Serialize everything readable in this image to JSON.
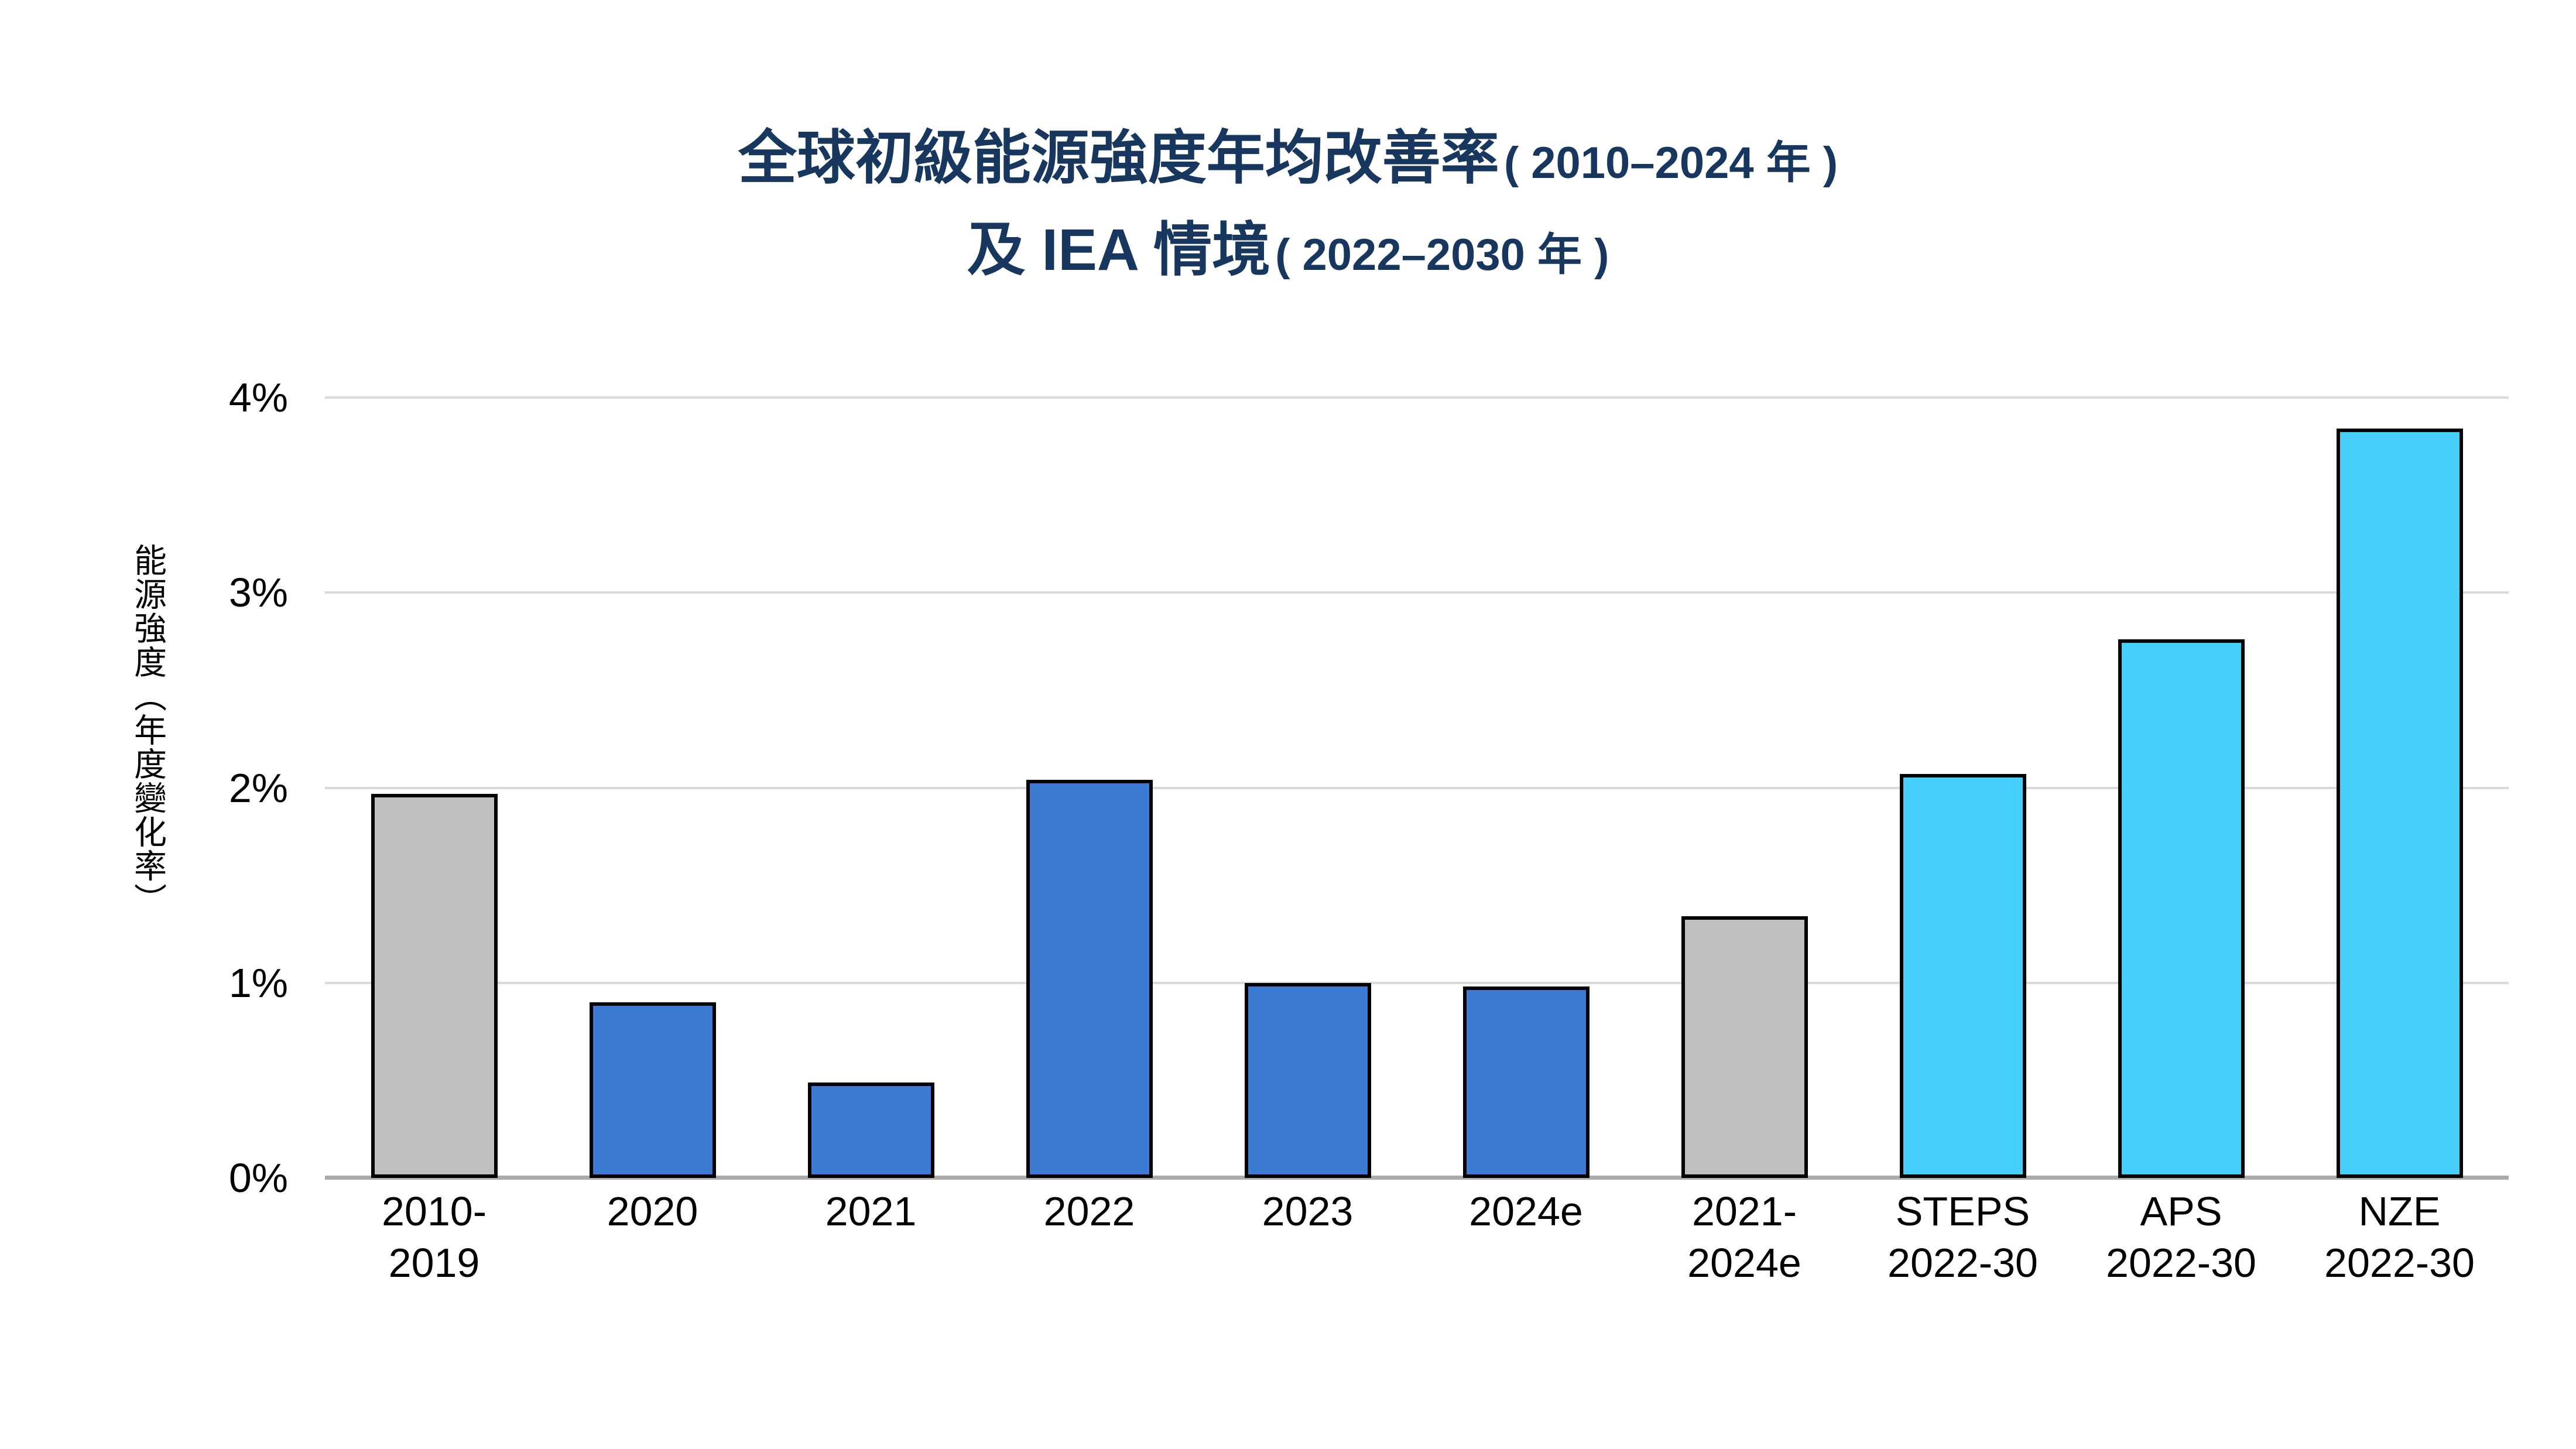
{
  "title": {
    "line1_main": "全球初級能源強度年均改善率",
    "line1_paren": "( 2010–2024 年 )",
    "line2_main": "及 IEA 情境",
    "line2_paren": "( 2022–2030 年 )",
    "color": "#17375E"
  },
  "chart_data": {
    "type": "bar",
    "title": "全球初級能源強度年均改善率 ( 2010–2024 年 ) 及 IEA 情境 ( 2022–2030 年 )",
    "xlabel": "",
    "ylabel": "能源強度（年度變化率）",
    "ylim": [
      0,
      4
    ],
    "grid": true,
    "legend": false,
    "ytick_labels": [
      "0%",
      "1%",
      "2%",
      "3%",
      "4%"
    ],
    "categories": [
      "2010-2019",
      "2020",
      "2021",
      "2022",
      "2023",
      "2024e",
      "2021-2024e",
      "STEPS 2022-30",
      "APS 2022-30",
      "NZE 2022-30"
    ],
    "category_label_lines": [
      [
        "2010-",
        "2019"
      ],
      [
        "2020"
      ],
      [
        "2021"
      ],
      [
        "2022"
      ],
      [
        "2023"
      ],
      [
        "2024e"
      ],
      [
        "2021-",
        "2024e"
      ],
      [
        "STEPS",
        "2022-30"
      ],
      [
        "APS",
        "2022-30"
      ],
      [
        "NZE",
        "2022-30"
      ]
    ],
    "values": [
      1.97,
      0.9,
      0.49,
      2.04,
      1.0,
      0.98,
      1.34,
      2.07,
      2.76,
      3.84
    ],
    "bar_colors": [
      "#BFBFBF",
      "#3D7AD3",
      "#3D7AD3",
      "#3D7AD3",
      "#3D7AD3",
      "#3D7AD3",
      "#BFBFBF",
      "#47CFFB",
      "#47CFFB",
      "#47CFFB"
    ],
    "bar_border_color": "#000000",
    "gridline_color": "#D9D9D9",
    "axis_line_color": "#ABABAB",
    "text_color": "#000000"
  }
}
